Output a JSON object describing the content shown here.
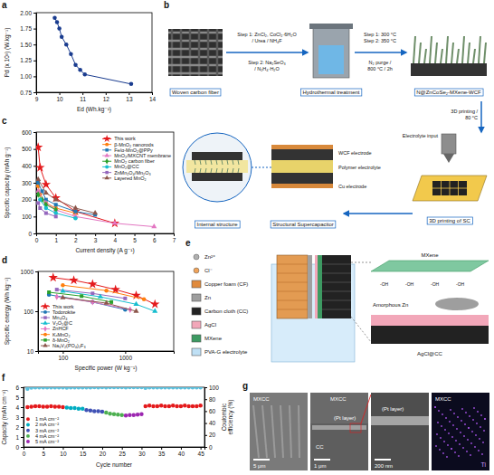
{
  "panel_labels": [
    "a",
    "b",
    "c",
    "d",
    "e",
    "f",
    "g"
  ],
  "chart_data": [
    {
      "type": "line",
      "xlabel": "Ed (Wh.kg⁻¹)",
      "ylabel": "Pd (x 10³) (W.kg⁻¹)",
      "x": [
        9.8,
        9.9,
        10.0,
        10.1,
        10.3,
        10.5,
        10.7,
        10.9,
        11.1,
        13.1
      ],
      "series": [
        {
          "color": "#1a3c8f",
          "marker": "circle",
          "values": [
            1.92,
            1.85,
            1.75,
            1.62,
            1.5,
            1.35,
            1.18,
            1.1,
            1.03,
            0.88
          ]
        }
      ],
      "xlim": [
        9,
        14
      ],
      "xticks": [
        9,
        10,
        11,
        12,
        13,
        14
      ],
      "ylim": [
        0.75,
        2
      ],
      "yticks": [
        0.75,
        {
          "value": 1,
          "label": "1.00"
        },
        1.25,
        {
          "value": 1.5,
          "label": "1.50"
        },
        1.75,
        {
          "value": 2,
          "label": "2.00"
        }
      ]
    },
    {
      "type": "line",
      "xlabel": "Current density (A g⁻¹)",
      "ylabel": "Specific capacity (mAh g⁻¹)",
      "legend": "upper right",
      "series": [
        {
          "name": "This work",
          "color": "#e41a1c",
          "marker": "star",
          "x": [
            0.1,
            0.2,
            0.5,
            1,
            2,
            4
          ],
          "values": [
            510,
            390,
            290,
            210,
            130,
            60
          ]
        },
        {
          "name": "β-MnO₂ nanorods",
          "color": "#ff7f0e",
          "marker": "circle",
          "x": [
            0.1,
            0.2,
            0.5,
            1,
            2
          ],
          "values": [
            280,
            230,
            180,
            150,
            120
          ]
        },
        {
          "name": "Fe/α-MnO₂@PPy",
          "color": "#1f77b4",
          "marker": "square",
          "x": [
            0.1,
            0.3,
            0.5,
            1,
            2,
            3
          ],
          "values": [
            300,
            250,
            200,
            170,
            130,
            110
          ]
        },
        {
          "name": "MnO₂/MXCNT membrane",
          "color": "#e377c2",
          "marker": "triangle",
          "x": [
            0.1,
            0.5,
            1,
            2,
            4,
            6
          ],
          "values": [
            250,
            180,
            140,
            100,
            60,
            40
          ]
        },
        {
          "name": "MnO₂ carbon fiber",
          "color": "#2ca02c",
          "marker": "diamond",
          "x": [
            0.1,
            0.3,
            0.5,
            1
          ],
          "values": [
            230,
            200,
            170,
            140
          ]
        },
        {
          "name": "MnO₂@CC",
          "color": "#17becf",
          "marker": "circle",
          "x": [
            0.2,
            0.5,
            1,
            2
          ],
          "values": [
            200,
            150,
            120,
            90
          ]
        },
        {
          "name": "ZnMn₂O₄/Mn₂O₃",
          "color": "#9467bd",
          "marker": "square",
          "x": [
            0.1,
            0.2,
            0.5,
            1
          ],
          "values": [
            180,
            150,
            120,
            100
          ]
        },
        {
          "name": "Layered MnO₂",
          "color": "#8c564b",
          "marker": "triangle",
          "x": [
            0.1,
            0.5,
            1,
            2,
            3
          ],
          "values": [
            320,
            240,
            200,
            150,
            120
          ]
        }
      ],
      "xlim": [
        0,
        7
      ],
      "xticks": [
        0,
        1,
        2,
        3,
        4,
        5,
        6,
        7
      ],
      "ylim": [
        0,
        600
      ],
      "yticks": [
        0,
        100,
        200,
        300,
        400,
        500,
        600
      ]
    },
    {
      "type": "line",
      "log": true,
      "xlabel": "Specific power (W kg⁻¹)",
      "ylabel": "Specific energy (Wh kg⁻¹)",
      "legend": "lower left",
      "series": [
        {
          "name": "This work",
          "color": "#e41a1c",
          "marker": "star",
          "x": [
            70,
            150,
            300,
            700,
            1500,
            3000
          ],
          "values": [
            700,
            600,
            480,
            350,
            250,
            150
          ]
        },
        {
          "name": "Todorokite",
          "color": "#1f77b4",
          "marker": "circle",
          "x": [
            60,
            300,
            1000
          ],
          "values": [
            260,
            170,
            110
          ]
        },
        {
          "name": "Mn₃O₄",
          "color": "#9467bd",
          "marker": "square",
          "x": [
            80,
            300,
            1000
          ],
          "values": [
            350,
            280,
            210
          ]
        },
        {
          "name": "V₂O₅@C",
          "color": "#17becf",
          "marker": "triangle",
          "x": [
            100,
            400,
            1500,
            3000
          ],
          "values": [
            320,
            230,
            150,
            100
          ]
        },
        {
          "name": "ZnHCF",
          "color": "#e377c2",
          "marker": "diamond",
          "x": [
            80,
            300,
            1200
          ],
          "values": [
            230,
            170,
            110
          ]
        },
        {
          "name": "KₓMnO₂",
          "color": "#ff7f0e",
          "marker": "circle",
          "x": [
            100,
            500,
            2000
          ],
          "values": [
            450,
            330,
            200
          ]
        },
        {
          "name": "δ-MnO₂",
          "color": "#2ca02c",
          "marker": "square",
          "x": [
            60,
            200,
            600
          ],
          "values": [
            300,
            240,
            170
          ]
        },
        {
          "name": "Na₃V₂(PO₄)₂F₃",
          "color": "#8c564b",
          "marker": "triangle",
          "x": [
            100,
            500,
            1500
          ],
          "values": [
            220,
            160,
            100
          ]
        }
      ],
      "xlim": [
        40,
        6000
      ],
      "xticks": [
        100,
        1000
      ],
      "ylim": [
        10,
        1000
      ],
      "yticks": [
        10,
        100,
        1000
      ]
    },
    {
      "type": "scatter",
      "xlabel": "Cycle number",
      "ylabel": "Capacity (mAh cm⁻²)",
      "y2label": "Coulombic efficiency (%)",
      "legend": "lower left",
      "marker": "circle",
      "series": [
        {
          "name": "1 mA cm⁻²",
          "color": "#e41a1c",
          "x": [
            1,
            2,
            3,
            4,
            5,
            6,
            7,
            8,
            9,
            10,
            31,
            32,
            33,
            34,
            35,
            36,
            37,
            38,
            39,
            40,
            41,
            42,
            43,
            44,
            45
          ],
          "values": [
            4.0,
            4.05,
            4.1,
            4.1,
            4.05,
            4.05,
            4.1,
            4.05,
            4.05,
            4.0,
            4.1,
            4.15,
            4.1,
            4.1,
            4.15,
            4.1,
            4.1,
            4.15,
            4.1,
            4.1,
            4.15,
            4.1,
            4.1,
            4.1,
            4.15
          ]
        },
        {
          "name": "2 mA cm⁻²",
          "color": "#00acc1",
          "x": [
            11,
            12,
            13,
            14,
            15
          ],
          "values": [
            3.95,
            3.9,
            3.9,
            3.85,
            3.85
          ]
        },
        {
          "name": "3 mA cm⁻²",
          "color": "#3f51b5",
          "x": [
            16,
            17,
            18,
            19,
            20
          ],
          "values": [
            3.7,
            3.65,
            3.6,
            3.6,
            3.55
          ]
        },
        {
          "name": "4 mA cm⁻²",
          "color": "#4caf50",
          "x": [
            21,
            22,
            23,
            24,
            25
          ],
          "values": [
            3.45,
            3.35,
            3.3,
            3.25,
            3.2
          ]
        },
        {
          "name": "5 mA cm⁻²",
          "color": "#9c27b0",
          "x": [
            26,
            27,
            28,
            29,
            30
          ],
          "values": [
            3.15,
            3.2,
            3.2,
            3.25,
            3.3
          ]
        },
        {
          "axis": "y2",
          "color": "#5bc0de",
          "x": [
            1,
            2,
            3,
            4,
            5,
            6,
            7,
            8,
            9,
            10,
            11,
            12,
            13,
            14,
            15,
            16,
            17,
            18,
            19,
            20,
            21,
            22,
            23,
            24,
            25,
            26,
            27,
            28,
            29,
            30,
            31,
            32,
            33,
            34,
            35,
            36,
            37,
            38,
            39,
            40,
            41,
            42,
            43,
            44,
            45
          ],
          "values": [
            97.5,
            99.2,
            99.5,
            99.6,
            99.6,
            99.7,
            99.6,
            99.7,
            99.7,
            99.6,
            99.4,
            99.7,
            99.8,
            99.8,
            99.8,
            99.5,
            99.8,
            99.9,
            99.8,
            99.9,
            99.6,
            99.9,
            99.9,
            99.9,
            99.9,
            99.7,
            99.9,
            99.9,
            99.9,
            99.9,
            98.9,
            99.6,
            99.7,
            99.7,
            99.8,
            99.7,
            99.8,
            99.8,
            99.7,
            99.8,
            99.8,
            99.7,
            99.8,
            99.8,
            99.8
          ]
        }
      ],
      "xlim": [
        0,
        46
      ],
      "xticks": [
        0,
        5,
        10,
        15,
        20,
        25,
        30,
        35,
        40,
        45
      ],
      "ylim": [
        0,
        6
      ],
      "yticks": [
        0,
        1,
        2,
        3,
        4,
        5,
        6
      ],
      "y2lim": [
        0,
        100
      ],
      "y2ticks": [
        0,
        20,
        40,
        60,
        80,
        100
      ]
    }
  ],
  "diagrams": {
    "b": {
      "steps_hydrothermal": [
        "Step 1: ZnCl₂, CoCl₂·6H₂O",
        "/ Urea / NH₄F",
        "Step 2: Na₂SeO₃",
        "/ N₂H₄·H₂O"
      ],
      "steps_annealing": [
        "Step 1: 300 °C",
        "Step 2: 350 °C",
        "N₂ purge /",
        "800 °C / 2h"
      ],
      "nodes": [
        {
          "label": "Woven carbon fiber"
        },
        {
          "label": "Hydrothermal treatment"
        },
        {
          "label": "N@ZnCoSe₂-MXene-WCF"
        },
        {
          "label": "3D printing of SC"
        },
        {
          "label": "Structural Supercapacitor"
        },
        {
          "label": "Internal structure"
        }
      ],
      "printing": [
        "3D printing /",
        "80 °C"
      ],
      "annotations": [
        "Electrolyte input",
        "WCF electrode",
        "Polymer electrolyte",
        "Cu electrode"
      ]
    },
    "e": {
      "legend": [
        {
          "label": "Zn²⁺"
        },
        {
          "label": "Cl⁻"
        },
        {
          "label": "Copper foam (CF)"
        },
        {
          "label": "Zn"
        },
        {
          "label": "Carbon cloth (CC)"
        },
        {
          "label": "AgCl"
        },
        {
          "label": "MXene"
        },
        {
          "label": "PVA-G electrolyte"
        }
      ],
      "zoom_labels": [
        "MXene",
        "Amorphous Zn",
        "AgCl@CC"
      ],
      "groups": [
        "-OH",
        "-OH",
        "-OH",
        "-OH"
      ]
    },
    "g": {
      "images": [
        {
          "labels": [
            "MXCC"
          ],
          "scale": "5 μm"
        },
        {
          "labels": [
            "MXCC",
            "(Pt layer)",
            "CC"
          ],
          "scale": "1 μm"
        },
        {
          "labels": [
            "(Pt layer)"
          ],
          "scale": "200 nm"
        },
        {
          "labels": [
            "MXCC"
          ],
          "element": "Ti"
        }
      ]
    }
  }
}
